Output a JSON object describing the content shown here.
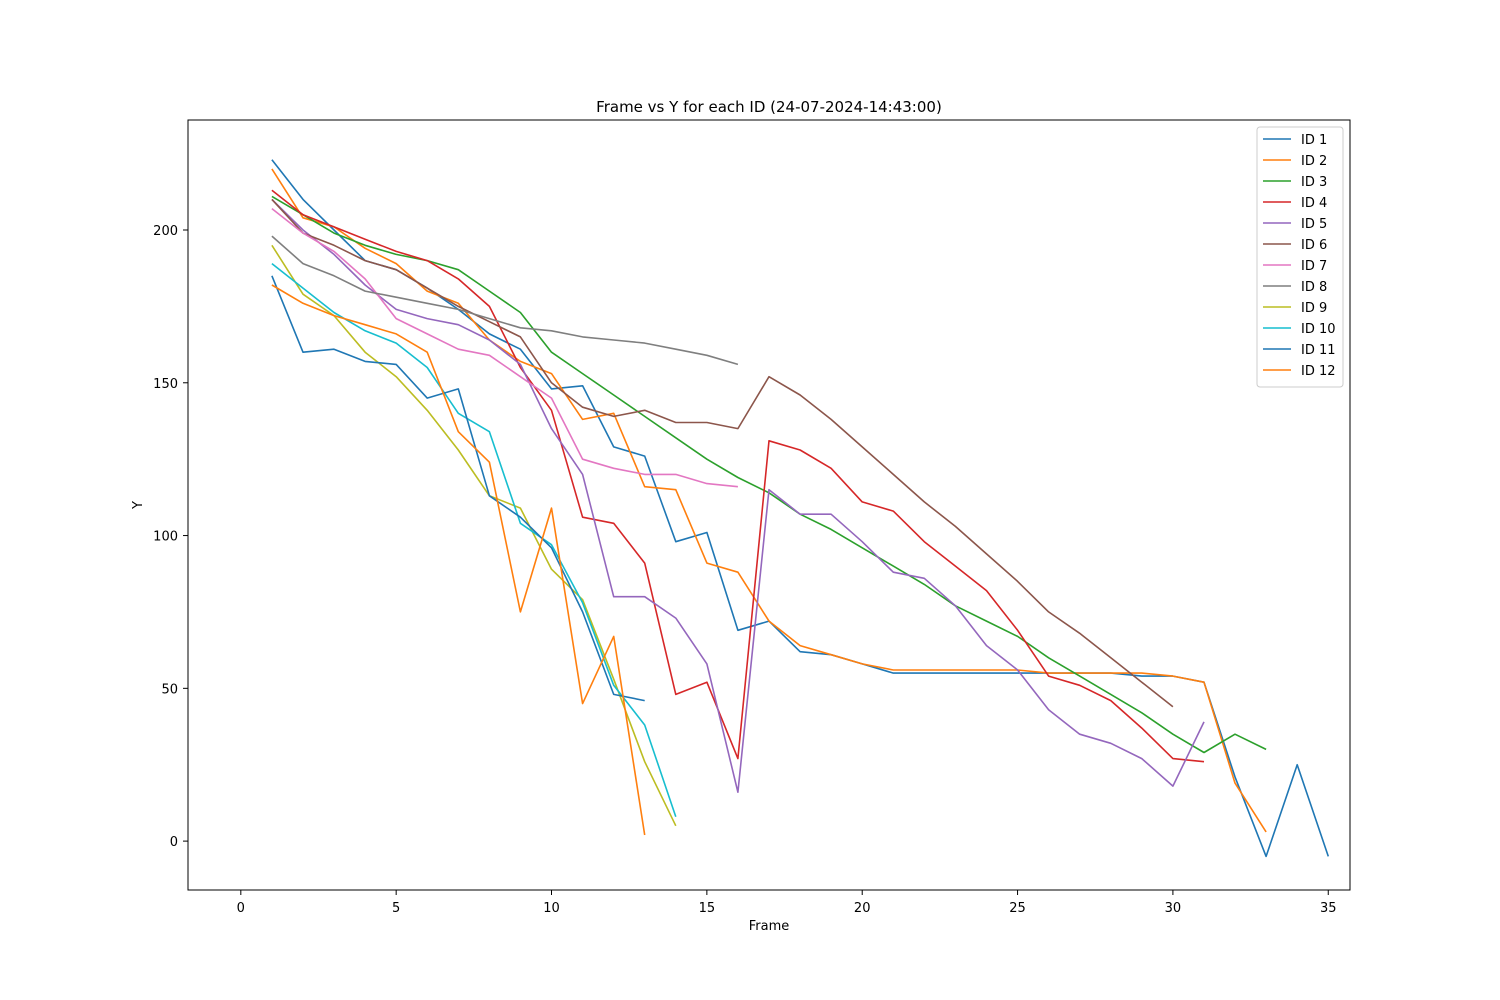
{
  "chart_data": {
    "type": "line",
    "title": "Frame vs Y for each ID (24-07-2024-14:43:00)",
    "xlabel": "Frame",
    "ylabel": "Y",
    "xlim": [
      -1.7,
      35.7
    ],
    "ylim": [
      -16,
      236
    ],
    "xticks": [
      0,
      5,
      10,
      15,
      20,
      25,
      30,
      35
    ],
    "yticks": [
      0,
      50,
      100,
      150,
      200
    ],
    "grid": false,
    "legend_position": "upper right",
    "series": [
      {
        "name": "ID 1",
        "color": "#1f77b4",
        "x": [
          1,
          2,
          3,
          4,
          5,
          6,
          7,
          8,
          9,
          10,
          11,
          12,
          13,
          14,
          15,
          16,
          17,
          18,
          19,
          20,
          21,
          22,
          23,
          24,
          25,
          26,
          27,
          28,
          29,
          30,
          31,
          32,
          33,
          34,
          35
        ],
        "y": [
          223,
          210,
          200,
          190,
          187,
          181,
          174,
          166,
          161,
          148,
          149,
          129,
          126,
          98,
          101,
          69,
          72,
          62,
          61,
          58,
          55,
          55,
          55,
          55,
          55,
          55,
          55,
          55,
          54,
          54,
          52,
          21,
          -5,
          25,
          -5
        ]
      },
      {
        "name": "ID 2",
        "color": "#ff7f0e",
        "x": [
          1,
          2,
          3,
          4,
          5,
          6,
          7,
          8,
          9,
          10,
          11,
          12,
          13,
          14,
          15,
          16,
          17,
          18,
          19,
          20,
          21,
          22,
          23,
          24,
          25,
          26,
          27,
          28,
          29,
          30,
          31,
          32,
          33
        ],
        "y": [
          220,
          204,
          201,
          194,
          189,
          180,
          176,
          164,
          157,
          153,
          138,
          140,
          116,
          115,
          91,
          88,
          72,
          64,
          61,
          58,
          56,
          56,
          56,
          56,
          56,
          55,
          55,
          55,
          55,
          54,
          52,
          19,
          3
        ]
      },
      {
        "name": "ID 3",
        "color": "#2ca02c",
        "x": [
          1,
          2,
          3,
          4,
          5,
          6,
          7,
          8,
          9,
          10,
          11,
          12,
          13,
          14,
          15,
          16,
          17,
          18,
          19,
          20,
          21,
          22,
          23,
          24,
          25,
          26,
          27,
          28,
          29,
          30,
          31,
          32,
          33
        ],
        "y": [
          211,
          205,
          199,
          195,
          192,
          190,
          187,
          180,
          173,
          160,
          153,
          146,
          139,
          132,
          125,
          119,
          114,
          107,
          102,
          96,
          90,
          84,
          77,
          72,
          67,
          60,
          54,
          48,
          42,
          35,
          29,
          35,
          30
        ]
      },
      {
        "name": "ID 4",
        "color": "#d62728",
        "x": [
          1,
          2,
          3,
          4,
          5,
          6,
          7,
          8,
          9,
          10,
          11,
          12,
          13,
          14,
          15,
          16,
          17,
          18,
          19,
          20,
          21,
          22,
          23,
          24,
          25,
          26,
          27,
          28,
          29,
          30,
          31
        ],
        "y": [
          213,
          205,
          201,
          197,
          193,
          190,
          184,
          175,
          155,
          141,
          106,
          104,
          91,
          48,
          52,
          27,
          131,
          128,
          122,
          111,
          108,
          98,
          90,
          82,
          69,
          54,
          51,
          46,
          37,
          27,
          26
        ]
      },
      {
        "name": "ID 5",
        "color": "#9467bd",
        "x": [
          1,
          2,
          3,
          4,
          5,
          6,
          7,
          8,
          9,
          10,
          11,
          12,
          13,
          14,
          15,
          16,
          17,
          18,
          19,
          20,
          21,
          22,
          23,
          24,
          25,
          26,
          27,
          28,
          29,
          30,
          31
        ],
        "y": [
          210,
          200,
          192,
          182,
          174,
          171,
          169,
          164,
          156,
          135,
          120,
          80,
          80,
          73,
          58,
          16,
          115,
          107,
          107,
          98,
          88,
          86,
          77,
          64,
          56,
          43,
          35,
          32,
          27,
          18,
          39
        ]
      },
      {
        "name": "ID 6",
        "color": "#8c564b",
        "x": [
          1,
          2,
          3,
          4,
          5,
          6,
          7,
          8,
          9,
          10,
          11,
          12,
          13,
          14,
          15,
          16,
          17,
          18,
          19,
          20,
          21,
          22,
          23,
          24,
          25,
          26,
          27,
          28,
          29,
          30
        ],
        "y": [
          210,
          199,
          195,
          190,
          187,
          181,
          175,
          170,
          165,
          150,
          142,
          139,
          141,
          137,
          137,
          135,
          152,
          146,
          138,
          129,
          120,
          111,
          103,
          94,
          85,
          75,
          68,
          60,
          52,
          44
        ]
      },
      {
        "name": "ID 7",
        "color": "#e377c2",
        "x": [
          1,
          2,
          3,
          4,
          5,
          6,
          7,
          8,
          9,
          10,
          11,
          12,
          13,
          14,
          15,
          16
        ],
        "y": [
          207,
          199,
          193,
          184,
          171,
          166,
          161,
          159,
          152,
          145,
          125,
          122,
          120,
          120,
          117,
          116
        ]
      },
      {
        "name": "ID 8",
        "color": "#7f7f7f",
        "x": [
          1,
          2,
          3,
          4,
          5,
          6,
          7,
          8,
          9,
          10,
          11,
          12,
          13,
          14,
          15,
          16
        ],
        "y": [
          198,
          189,
          185,
          180,
          178,
          176,
          174,
          171,
          168,
          167,
          165,
          164,
          163,
          161,
          159,
          156
        ]
      },
      {
        "name": "ID 9",
        "color": "#bcbd22",
        "x": [
          1,
          2,
          3,
          4,
          5,
          6,
          7,
          8,
          9,
          10,
          11,
          12,
          13,
          14
        ],
        "y": [
          195,
          179,
          172,
          160,
          152,
          141,
          128,
          113,
          109,
          89,
          79,
          53,
          26,
          5
        ]
      },
      {
        "name": "ID 10",
        "color": "#17becf",
        "x": [
          1,
          2,
          3,
          4,
          5,
          6,
          7,
          8,
          9,
          10,
          11,
          12,
          13,
          14
        ],
        "y": [
          189,
          181,
          173,
          167,
          163,
          155,
          140,
          134,
          104,
          97,
          78,
          51,
          38,
          8
        ]
      },
      {
        "name": "ID 11",
        "color": "#1f77b4",
        "x": [
          1,
          2,
          3,
          4,
          5,
          6,
          7,
          8,
          9,
          10,
          11,
          12,
          13
        ],
        "y": [
          185,
          160,
          161,
          157,
          156,
          145,
          148,
          113,
          106,
          96,
          75,
          48,
          46
        ]
      },
      {
        "name": "ID 12",
        "color": "#ff7f0e",
        "x": [
          1,
          2,
          3,
          4,
          5,
          6,
          7,
          8,
          9,
          10,
          11,
          12,
          13
        ],
        "y": [
          182,
          176,
          172,
          169,
          166,
          160,
          134,
          124,
          75,
          109,
          45,
          67,
          2
        ]
      }
    ]
  }
}
